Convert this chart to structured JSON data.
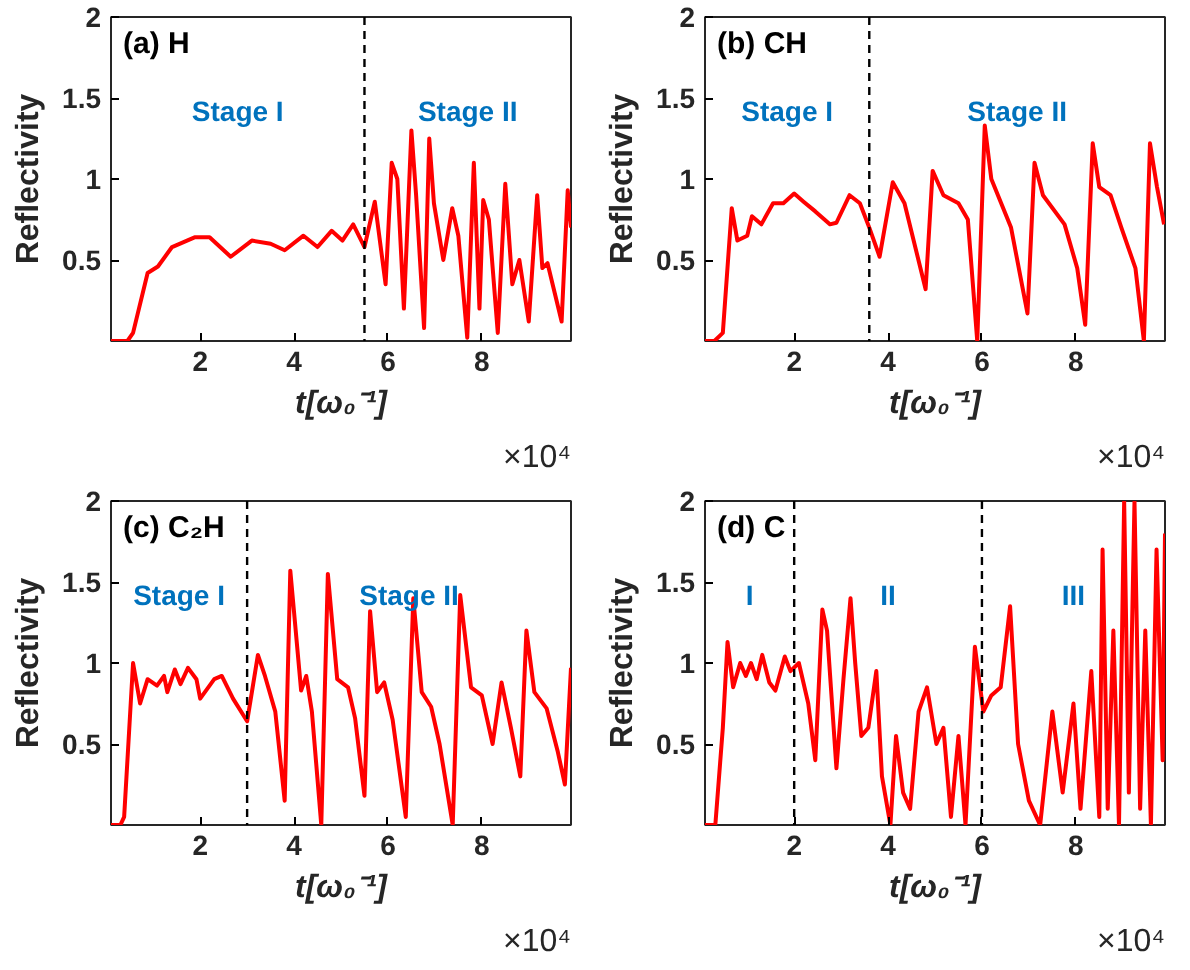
{
  "chart_data": [
    {
      "type": "line",
      "title": "(a) H",
      "xlabel": "t[ω₀⁻¹]",
      "ylabel": "Reflectivity",
      "xlim": [
        0.1,
        9.9
      ],
      "ylim": [
        0,
        2
      ],
      "xticks": [
        2,
        4,
        6,
        8
      ],
      "yticks": [
        0.5,
        1,
        1.5,
        2
      ],
      "grid": false,
      "x": [
        0.1,
        0.3,
        0.45,
        0.57,
        0.88,
        1.1,
        1.4,
        1.88,
        2.2,
        2.65,
        3.1,
        3.5,
        3.8,
        4.2,
        4.5,
        4.8,
        5.03,
        5.26,
        5.5,
        5.72,
        5.95,
        6.08,
        6.2,
        6.34,
        6.5,
        6.6,
        6.77,
        6.88,
        6.98,
        7.18,
        7.37,
        7.5,
        7.69,
        7.83,
        7.95,
        8.03,
        8.15,
        8.34,
        8.5,
        8.65,
        8.8,
        9.0,
        9.18,
        9.29,
        9.4,
        9.7,
        9.83,
        9.9
      ],
      "series": [
        {
          "color": "#ff0000",
          "values": [
            0,
            0,
            0,
            0.05,
            0.42,
            0.46,
            0.58,
            0.64,
            0.64,
            0.52,
            0.62,
            0.6,
            0.56,
            0.65,
            0.58,
            0.68,
            0.62,
            0.72,
            0.58,
            0.86,
            0.35,
            1.1,
            1.0,
            0.2,
            1.3,
            0.9,
            0.08,
            1.25,
            0.85,
            0.5,
            0.82,
            0.65,
            0.02,
            1.1,
            0.2,
            0.87,
            0.75,
            0.05,
            0.97,
            0.35,
            0.5,
            0.12,
            0.9,
            0.45,
            0.48,
            0.12,
            0.93,
            0.7
          ]
        }
      ],
      "ref_lines": [
        {
          "axis": "x",
          "value": 5.5,
          "line_style": "dashed",
          "color": "#000000"
        }
      ],
      "annotations": [
        "Stage I",
        "Stage II",
        "×10⁴"
      ]
    },
    {
      "type": "line",
      "title": "(b) CH",
      "xlabel": "t[ω₀⁻¹]",
      "ylabel": "Reflectivity",
      "xlim": [
        0.1,
        9.9
      ],
      "ylim": [
        0,
        2
      ],
      "xticks": [
        2,
        4,
        6,
        8
      ],
      "yticks": [
        0.5,
        1,
        1.5,
        2
      ],
      "grid": false,
      "x": [
        0.1,
        0.3,
        0.48,
        0.67,
        0.79,
        1.0,
        1.1,
        1.3,
        1.55,
        1.77,
        2.0,
        2.2,
        2.45,
        2.76,
        2.9,
        3.18,
        3.4,
        3.6,
        3.82,
        4.1,
        4.35,
        4.8,
        4.95,
        5.18,
        5.5,
        5.7,
        5.9,
        6.06,
        6.2,
        6.62,
        6.97,
        7.12,
        7.3,
        7.76,
        8.03,
        8.2,
        8.36,
        8.5,
        8.74,
        8.97,
        9.27,
        9.45,
        9.58,
        9.73,
        9.88
      ],
      "series": [
        {
          "color": "#ff0000",
          "values": [
            0,
            0,
            0.05,
            0.82,
            0.62,
            0.65,
            0.77,
            0.72,
            0.85,
            0.85,
            0.91,
            0.86,
            0.8,
            0.72,
            0.73,
            0.9,
            0.85,
            0.7,
            0.52,
            0.98,
            0.85,
            0.32,
            1.05,
            0.9,
            0.85,
            0.75,
            0.0,
            1.33,
            1.0,
            0.7,
            0.17,
            1.1,
            0.9,
            0.72,
            0.45,
            0.1,
            1.22,
            0.95,
            0.9,
            0.7,
            0.45,
            0.0,
            1.22,
            0.95,
            0.72
          ]
        }
      ],
      "ref_lines": [
        {
          "axis": "x",
          "value": 3.6,
          "line_style": "dashed",
          "color": "#000000"
        }
      ],
      "annotations": [
        "Stage I",
        "Stage II",
        "×10⁴"
      ]
    },
    {
      "type": "line",
      "title": "(c) C₂H",
      "xlabel": "t[ω₀⁻¹]",
      "ylabel": "Reflectivity",
      "xlim": [
        0.1,
        9.9
      ],
      "ylim": [
        0,
        2
      ],
      "xticks": [
        2,
        4,
        6,
        8
      ],
      "yticks": [
        0.5,
        1,
        1.5,
        2
      ],
      "grid": false,
      "x": [
        0.1,
        0.3,
        0.38,
        0.57,
        0.72,
        0.88,
        1.08,
        1.23,
        1.3,
        1.46,
        1.58,
        1.74,
        1.92,
        2.0,
        2.3,
        2.46,
        2.7,
        3.0,
        3.23,
        3.38,
        3.6,
        3.8,
        3.92,
        4.15,
        4.26,
        4.38,
        4.58,
        4.72,
        4.92,
        5.15,
        5.3,
        5.5,
        5.62,
        5.77,
        5.92,
        6.1,
        6.38,
        6.54,
        6.72,
        6.92,
        7.1,
        7.38,
        7.54,
        7.77,
        8.0,
        8.23,
        8.42,
        8.62,
        8.82,
        8.95,
        9.12,
        9.38,
        9.62,
        9.77,
        9.9
      ],
      "series": [
        {
          "color": "#ff0000",
          "values": [
            0,
            0,
            0.05,
            1.0,
            0.75,
            0.9,
            0.86,
            0.92,
            0.82,
            0.96,
            0.87,
            0.97,
            0.9,
            0.78,
            0.9,
            0.92,
            0.78,
            0.64,
            1.05,
            0.92,
            0.7,
            0.15,
            1.57,
            0.83,
            0.92,
            0.7,
            0.0,
            1.55,
            0.9,
            0.85,
            0.66,
            0.18,
            1.32,
            0.82,
            0.88,
            0.65,
            0.05,
            1.4,
            0.82,
            0.73,
            0.5,
            0.0,
            1.42,
            0.85,
            0.8,
            0.5,
            0.88,
            0.6,
            0.3,
            1.2,
            0.82,
            0.72,
            0.45,
            0.25,
            0.97
          ]
        }
      ],
      "ref_lines": [
        {
          "axis": "x",
          "value": 3.0,
          "line_style": "dashed",
          "color": "#000000"
        }
      ],
      "annotations": [
        "Stage I",
        "Stage II",
        "×10⁴"
      ]
    },
    {
      "type": "line",
      "title": "(d) C",
      "xlabel": "t[ω₀⁻¹]",
      "ylabel": "Reflectivity",
      "xlim": [
        0.1,
        9.9
      ],
      "ylim": [
        0,
        2
      ],
      "xticks": [
        2,
        4,
        6,
        8
      ],
      "yticks": [
        0.5,
        1,
        1.5,
        2
      ],
      "grid": false,
      "x": [
        0.1,
        0.32,
        0.48,
        0.58,
        0.7,
        0.85,
        0.97,
        1.08,
        1.2,
        1.32,
        1.47,
        1.6,
        1.8,
        1.92,
        2.1,
        2.3,
        2.45,
        2.6,
        2.7,
        2.9,
        3.05,
        3.2,
        3.3,
        3.43,
        3.58,
        3.75,
        3.87,
        4.05,
        4.17,
        4.32,
        4.47,
        4.65,
        4.83,
        5.03,
        5.18,
        5.34,
        5.5,
        5.65,
        5.85,
        6.03,
        6.2,
        6.4,
        6.6,
        6.77,
        7.0,
        7.24,
        7.5,
        7.72,
        7.95,
        8.1,
        8.33,
        8.5,
        8.57,
        8.68,
        8.8,
        8.92,
        9.03,
        9.13,
        9.25,
        9.37,
        9.48,
        9.6,
        9.72,
        9.85,
        9.9
      ],
      "series": [
        {
          "color": "#ff0000",
          "values": [
            0,
            0.0,
            0.6,
            1.13,
            0.85,
            1.0,
            0.92,
            1.0,
            0.9,
            1.05,
            0.88,
            0.83,
            1.04,
            0.95,
            1.0,
            0.75,
            0.4,
            1.33,
            1.2,
            0.35,
            0.9,
            1.4,
            1.0,
            0.55,
            0.6,
            0.95,
            0.3,
            0.0,
            0.55,
            0.2,
            0.1,
            0.7,
            0.85,
            0.5,
            0.6,
            0.05,
            0.55,
            0.0,
            1.1,
            0.7,
            0.8,
            0.85,
            1.35,
            0.5,
            0.15,
            0.0,
            0.7,
            0.2,
            0.75,
            0.1,
            0.95,
            0.05,
            1.7,
            0.1,
            1.2,
            0.0,
            2.0,
            0.2,
            2.0,
            0.1,
            1.2,
            0.0,
            1.7,
            0.4,
            1.8
          ]
        }
      ],
      "ref_lines": [
        {
          "axis": "x",
          "value": 2.0,
          "line_style": "dashed",
          "color": "#000000"
        },
        {
          "axis": "x",
          "value": 6.0,
          "line_style": "dashed",
          "color": "#000000"
        }
      ],
      "annotations": [
        "I",
        "II",
        "III",
        "×10⁴"
      ]
    }
  ]
}
